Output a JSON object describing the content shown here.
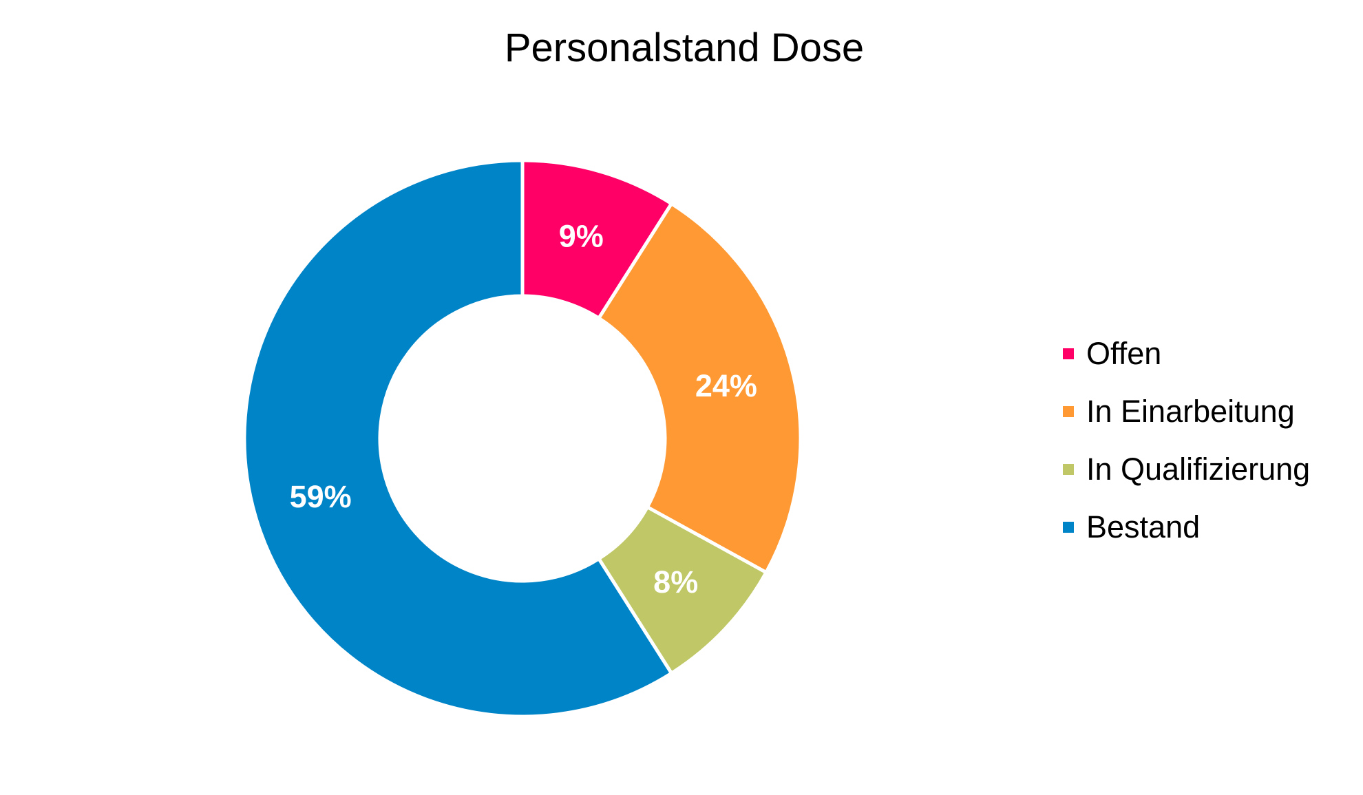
{
  "chart_data": {
    "type": "pie",
    "variant": "donut",
    "title": "Personalstand Dose",
    "categories": [
      "Offen",
      "In Einarbeitung",
      "In Qualifizierung",
      "Bestand"
    ],
    "values": [
      9,
      24,
      8,
      59
    ],
    "labels": [
      "9%",
      "24%",
      "8%",
      "59%"
    ],
    "colors": [
      "#ff0066",
      "#ff9933",
      "#bfc766",
      "#0084c8"
    ],
    "legend_position": "right",
    "start": "top",
    "direction": "clockwise"
  }
}
